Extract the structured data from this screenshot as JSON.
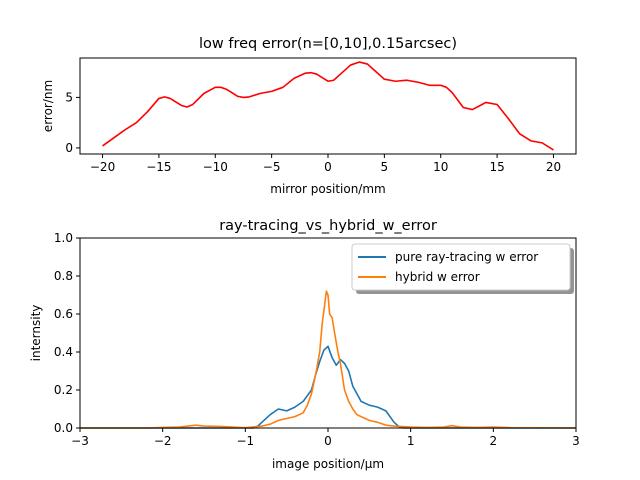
{
  "chart_data": [
    {
      "type": "line",
      "title": "low freq error(n=[0,10],0.15arcsec)",
      "xlabel": "mirror position/mm",
      "ylabel": "error/nm",
      "xlim": [
        -22,
        22
      ],
      "ylim": [
        -0.6,
        8.9
      ],
      "x_ticks": [
        -20,
        -15,
        -10,
        -5,
        0,
        5,
        10,
        15,
        20
      ],
      "x_tick_labels": [
        "−20",
        "−15",
        "−10",
        "−5",
        "0",
        "5",
        "10",
        "15",
        "20"
      ],
      "y_ticks": [
        0,
        5
      ],
      "y_tick_labels": [
        "0",
        "5"
      ],
      "grid": false,
      "legend": false,
      "series": [
        {
          "color": "#ff0000",
          "x": [
            -20,
            -19,
            -18,
            -17,
            -16,
            -15,
            -14.5,
            -14,
            -13,
            -12.5,
            -12,
            -11,
            -10,
            -9.5,
            -9,
            -8,
            -7.5,
            -7,
            -6,
            -5,
            -4,
            -3,
            -2,
            -1.5,
            -1,
            0,
            0.5,
            1,
            2,
            2.8,
            3.5,
            4,
            5,
            6,
            7,
            8,
            9,
            10,
            10.5,
            11,
            12,
            12.8,
            13.5,
            14,
            15,
            16,
            17,
            18,
            19,
            20
          ],
          "values": [
            0.2,
            1.0,
            1.8,
            2.5,
            3.6,
            4.9,
            5.05,
            4.9,
            4.2,
            4.05,
            4.3,
            5.4,
            6.0,
            6.0,
            5.8,
            5.1,
            5.0,
            5.05,
            5.4,
            5.6,
            6.0,
            6.9,
            7.4,
            7.45,
            7.3,
            6.6,
            6.7,
            7.2,
            8.2,
            8.5,
            8.3,
            7.8,
            6.8,
            6.6,
            6.7,
            6.5,
            6.2,
            6.2,
            6.0,
            5.5,
            4.0,
            3.8,
            4.2,
            4.5,
            4.3,
            2.9,
            1.4,
            0.7,
            0.5,
            -0.2
          ]
        }
      ]
    },
    {
      "type": "line",
      "title": "ray-tracing_vs_hybrid_w_error",
      "xlabel": "image position/μm",
      "ylabel": "internsity",
      "xlim": [
        -3,
        3
      ],
      "ylim": [
        0,
        1
      ],
      "x_ticks": [
        -3,
        -2,
        -1,
        0,
        1,
        2,
        3
      ],
      "x_tick_labels": [
        "−3",
        "−2",
        "−1",
        "0",
        "1",
        "2",
        "3"
      ],
      "y_ticks": [
        0,
        0.2,
        0.4,
        0.6,
        0.8,
        1.0
      ],
      "y_tick_labels": [
        "0.0",
        "0.2",
        "0.4",
        "0.6",
        "0.8",
        "1.0"
      ],
      "grid": false,
      "legend": "top-right",
      "series": [
        {
          "name": "pure ray-tracing w error",
          "color": "#1f77b4",
          "x": [
            -3.0,
            -1.0,
            -0.9,
            -0.85,
            -0.8,
            -0.7,
            -0.6,
            -0.5,
            -0.4,
            -0.3,
            -0.25,
            -0.2,
            -0.15,
            -0.1,
            -0.05,
            0.0,
            0.05,
            0.1,
            0.15,
            0.2,
            0.25,
            0.3,
            0.35,
            0.4,
            0.5,
            0.6,
            0.7,
            0.75,
            0.8,
            0.85,
            0.9,
            1.0,
            3.0
          ],
          "values": [
            0.0,
            0.0,
            0.0,
            0.01,
            0.03,
            0.07,
            0.1,
            0.09,
            0.11,
            0.14,
            0.17,
            0.2,
            0.28,
            0.35,
            0.41,
            0.43,
            0.37,
            0.33,
            0.36,
            0.34,
            0.3,
            0.22,
            0.18,
            0.14,
            0.12,
            0.11,
            0.09,
            0.06,
            0.03,
            0.01,
            0.0,
            0.0,
            0.0
          ]
        },
        {
          "name": "hybrid w error",
          "color": "#ff7f0e",
          "x": [
            -3.0,
            -2.2,
            -2.0,
            -1.8,
            -1.6,
            -1.5,
            -1.3,
            -1.1,
            -1.0,
            -0.9,
            -0.8,
            -0.7,
            -0.6,
            -0.5,
            -0.4,
            -0.3,
            -0.25,
            -0.2,
            -0.15,
            -0.1,
            -0.07,
            -0.04,
            -0.02,
            0.0,
            0.02,
            0.05,
            0.08,
            0.12,
            0.15,
            0.2,
            0.25,
            0.3,
            0.35,
            0.4,
            0.5,
            0.6,
            0.7,
            0.8,
            1.0,
            1.2,
            1.4,
            1.5,
            1.6,
            1.8,
            2.0,
            2.2,
            3.0
          ],
          "values": [
            0.0,
            0.0,
            0.003,
            0.005,
            0.015,
            0.01,
            0.008,
            0.004,
            0.002,
            0.006,
            0.01,
            0.02,
            0.04,
            0.05,
            0.06,
            0.08,
            0.12,
            0.18,
            0.28,
            0.4,
            0.55,
            0.65,
            0.72,
            0.7,
            0.6,
            0.58,
            0.5,
            0.4,
            0.34,
            0.2,
            0.14,
            0.1,
            0.07,
            0.06,
            0.04,
            0.03,
            0.015,
            0.01,
            0.005,
            0.003,
            0.005,
            0.012,
            0.005,
            0.003,
            0.005,
            0.002,
            0.0
          ]
        }
      ]
    }
  ]
}
